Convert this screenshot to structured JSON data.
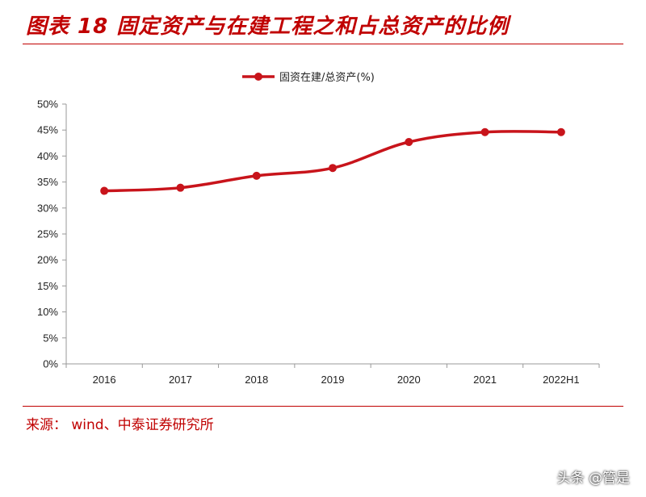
{
  "title": "图表 18 固定资产与在建工程之和占总资产的比例",
  "source": "来源： wind、中泰证券研究所",
  "watermark": "头条 @管是",
  "colors": {
    "accent": "#c00000",
    "series": "#c8141b"
  },
  "chart_data": {
    "type": "line",
    "title": "",
    "xlabel": "",
    "ylabel": "",
    "categories": [
      "2016",
      "2017",
      "2018",
      "2019",
      "2020",
      "2021",
      "2022H1"
    ],
    "series": [
      {
        "name": "固资在建/总资产(%)",
        "values": [
          33.3,
          33.9,
          36.2,
          37.7,
          42.7,
          44.6,
          44.6
        ]
      }
    ],
    "ylim": [
      0,
      50
    ],
    "yticks": [
      "0%",
      "5%",
      "10%",
      "15%",
      "20%",
      "25%",
      "30%",
      "35%",
      "40%",
      "45%",
      "50%"
    ],
    "grid": false,
    "legend": "top-center",
    "smooth": true,
    "markers": true
  }
}
